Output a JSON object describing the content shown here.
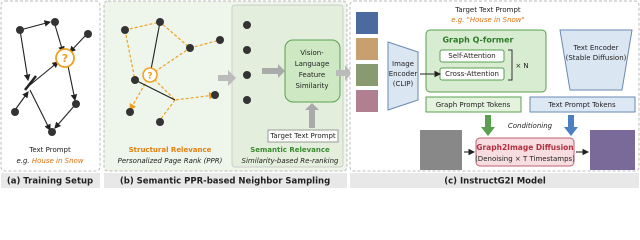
{
  "panel_a": {
    "prompt_label": "Text Prompt",
    "prompt_example_prefix": "e.g.",
    "prompt_example": "House in Snow",
    "caption": "(a) Training Setup"
  },
  "panel_b": {
    "structural_title": "Structural Relevance",
    "structural_subtitle": "Personalized Page Rank (PPR)",
    "semantic_title": "Semantic Relevance",
    "semantic_subtitle": "Similarity-based Re-ranking",
    "similarity_box": [
      "Vision-",
      "Language",
      "Feature",
      "Similarity"
    ],
    "target_prompt": "Target Text Prompt",
    "caption": "(b) Semantic PPR-based Neighbor Sampling"
  },
  "panel_c": {
    "target_prompt": "Target Text Prompt",
    "target_example": "e.g. \"House in Snow\"",
    "qformer_title": "Graph Q-former",
    "self_attention": "Self-Attention",
    "cross_attention": "Cross-Attention",
    "repeat": "× N",
    "image_encoder": [
      "Image",
      "Encoder",
      "(CLIP)"
    ],
    "text_encoder": [
      "Text Encoder",
      "(Stable Diffusion)"
    ],
    "graph_tokens": "Graph Prompt Tokens",
    "text_tokens": "Text Prompt Tokens",
    "conditioning": "Conditioning",
    "diffusion_title": "Graph2Image Diffusion",
    "diffusion_subtitle": "(Denoising × T Timestamps)",
    "caption": "(c) InstructG2I Model"
  }
}
